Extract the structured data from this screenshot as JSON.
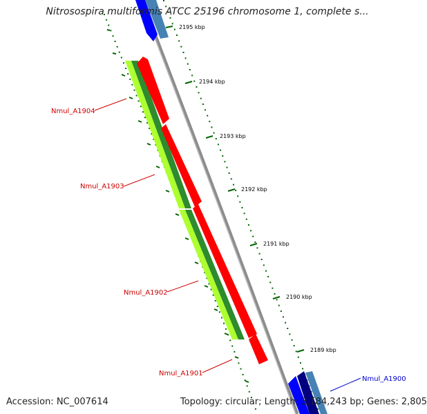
{
  "title": "Nitrosospira multiformis ATCC 25196 chromosome 1, complete s...",
  "footer": {
    "accession": "Accession: NC_007614",
    "summary": "Topology: circular; Length: 3,184,243 bp; Genes: 2,805"
  },
  "ticks": [
    "2195 kbp",
    "2194 kbp",
    "2193 kbp",
    "2192 kbp",
    "2191 kbp",
    "2190 kbp",
    "2189 kbp"
  ],
  "genes": [
    "Nmul_A1904",
    "Nmul_A1903",
    "Nmul_A1902",
    "Nmul_A1901",
    "Nmul_A1900"
  ],
  "colors": {
    "backbone": "#8c8c8c",
    "cds_forward": "#ff0000",
    "cds_reverse_dark": "#2e8b2e",
    "cds_reverse_light": "#adff2f",
    "blue_gene": "#0000ff",
    "navy_gene": "#000080",
    "steel_gene": "#4682b4",
    "tick": "#006400",
    "red_label": "#cc0000",
    "blue_label": "#0000cc"
  }
}
